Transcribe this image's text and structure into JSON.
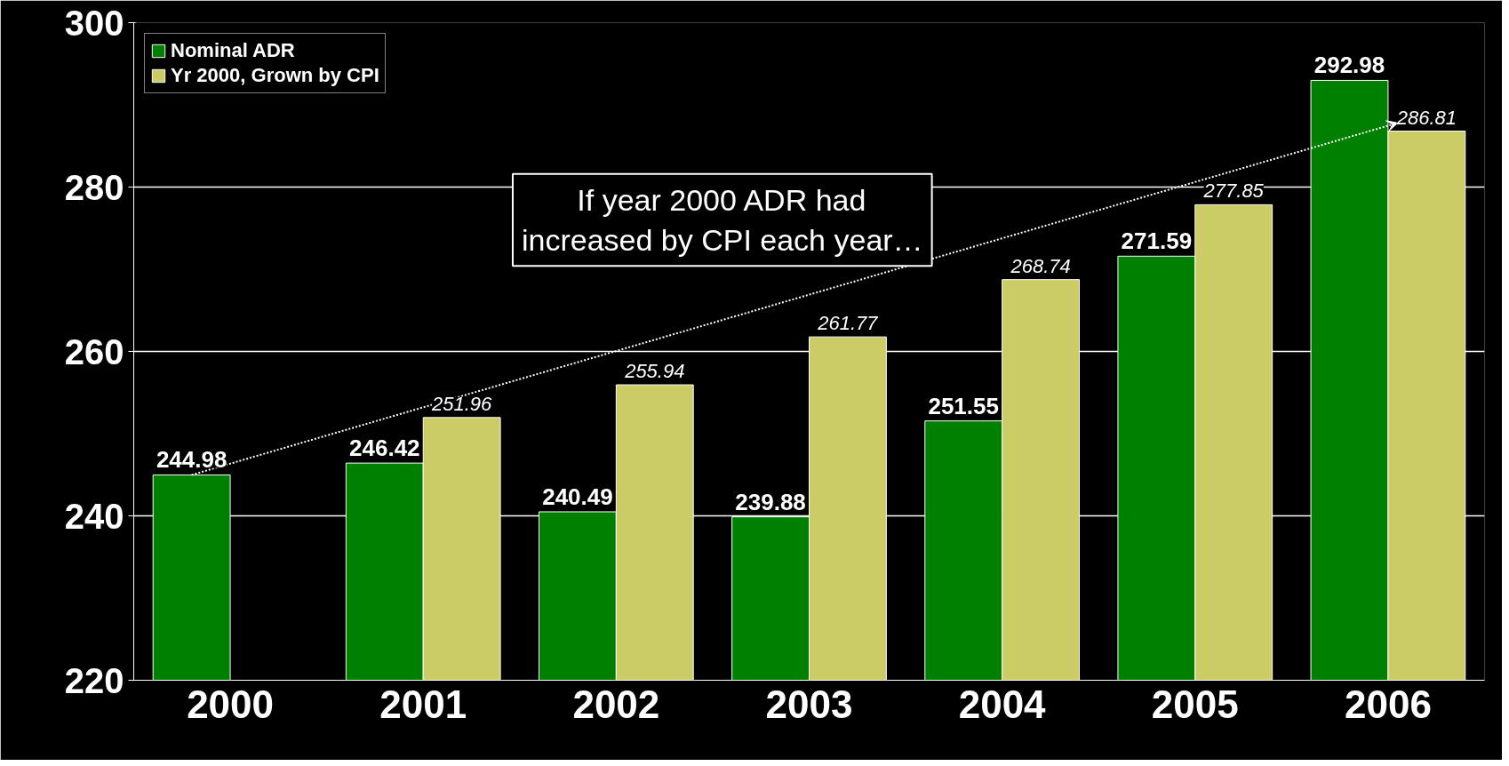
{
  "chart_data": {
    "type": "bar",
    "categories": [
      "2000",
      "2001",
      "2002",
      "2003",
      "2004",
      "2005",
      "2006"
    ],
    "series": [
      {
        "name": "Nominal ADR",
        "color": "#008000",
        "values": [
          244.98,
          246.42,
          240.49,
          239.88,
          251.55,
          271.59,
          292.98
        ]
      },
      {
        "name": "Yr 2000, Grown by CPI",
        "color": "#cccc66",
        "values": [
          null,
          251.96,
          255.94,
          261.77,
          268.74,
          277.85,
          286.81
        ]
      }
    ],
    "ylim": [
      220,
      300
    ],
    "yticks": [
      220,
      240,
      260,
      280,
      300
    ],
    "grid": "y",
    "legend": "top left",
    "data_labels": true,
    "annotations": [
      "If year 2000 ADR had\nincreased by CPI each year…"
    ]
  }
}
